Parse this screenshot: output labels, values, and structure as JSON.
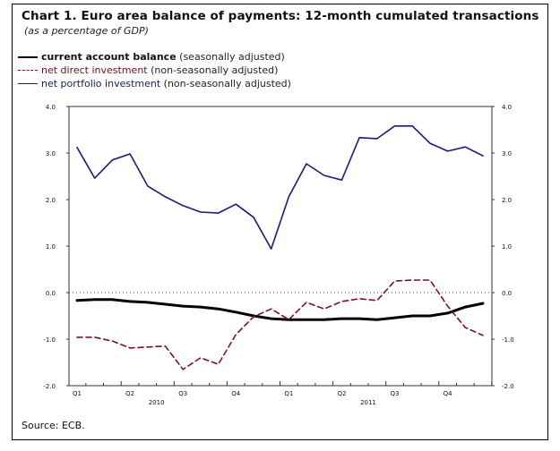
{
  "chart_data": {
    "type": "line",
    "title": "Chart 1. Euro area balance of payments: 12-month cumulated transactions",
    "subtitle": "(as a percentage of GDP)",
    "ylim": [
      -2.0,
      4.0
    ],
    "yticks": [
      "4.0",
      "3.0",
      "2.0",
      "1.0",
      "0.0",
      "-1.0",
      "-2.0"
    ],
    "ytick_values": [
      4,
      3,
      2,
      1,
      0,
      -1,
      -2
    ],
    "x_months": 24,
    "quarter_labels": [
      {
        "label": "Q1",
        "month": 0
      },
      {
        "label": "Q2",
        "month": 3
      },
      {
        "label": "Q3",
        "month": 6
      },
      {
        "label": "Q4",
        "month": 9
      },
      {
        "label": "Q1",
        "month": 12
      },
      {
        "label": "Q2",
        "month": 15
      },
      {
        "label": "Q3",
        "month": 18
      },
      {
        "label": "Q4",
        "month": 21
      }
    ],
    "year_labels": [
      {
        "label": "2010",
        "month": 4.5
      },
      {
        "label": "2011",
        "month": 16.5
      }
    ],
    "zero_line": "dotted",
    "series": [
      {
        "name": "current account balance",
        "qualifier": "(seasonally adjusted)",
        "color": "#000000",
        "style": "solid-thick",
        "values": [
          -0.17,
          -0.15,
          -0.15,
          -0.19,
          -0.21,
          -0.25,
          -0.29,
          -0.31,
          -0.35,
          -0.42,
          -0.5,
          -0.56,
          -0.58,
          -0.58,
          -0.58,
          -0.56,
          -0.56,
          -0.58,
          -0.54,
          -0.5,
          -0.5,
          -0.44,
          -0.31,
          -0.23
        ]
      },
      {
        "name": "net direct investment",
        "qualifier": "(non-seasonally adjusted)",
        "color": "#7a1030",
        "style": "dashed",
        "values": [
          -0.96,
          -0.96,
          -1.04,
          -1.19,
          -1.17,
          -1.15,
          -1.65,
          -1.4,
          -1.54,
          -0.9,
          -0.52,
          -0.35,
          -0.58,
          -0.21,
          -0.35,
          -0.19,
          -0.13,
          -0.17,
          0.25,
          0.27,
          0.27,
          -0.29,
          -0.75,
          -0.92
        ]
      },
      {
        "name": "net portfolio investment",
        "qualifier": "(non-seasonally adjusted)",
        "color": "#1a1a80",
        "style": "solid",
        "values": [
          3.12,
          2.46,
          2.85,
          2.98,
          2.29,
          2.06,
          1.87,
          1.73,
          1.71,
          1.9,
          1.62,
          0.94,
          2.06,
          2.77,
          2.52,
          2.42,
          3.33,
          3.31,
          3.58,
          3.58,
          3.21,
          3.04,
          3.13,
          2.94
        ]
      }
    ],
    "source": "Source: ECB."
  }
}
